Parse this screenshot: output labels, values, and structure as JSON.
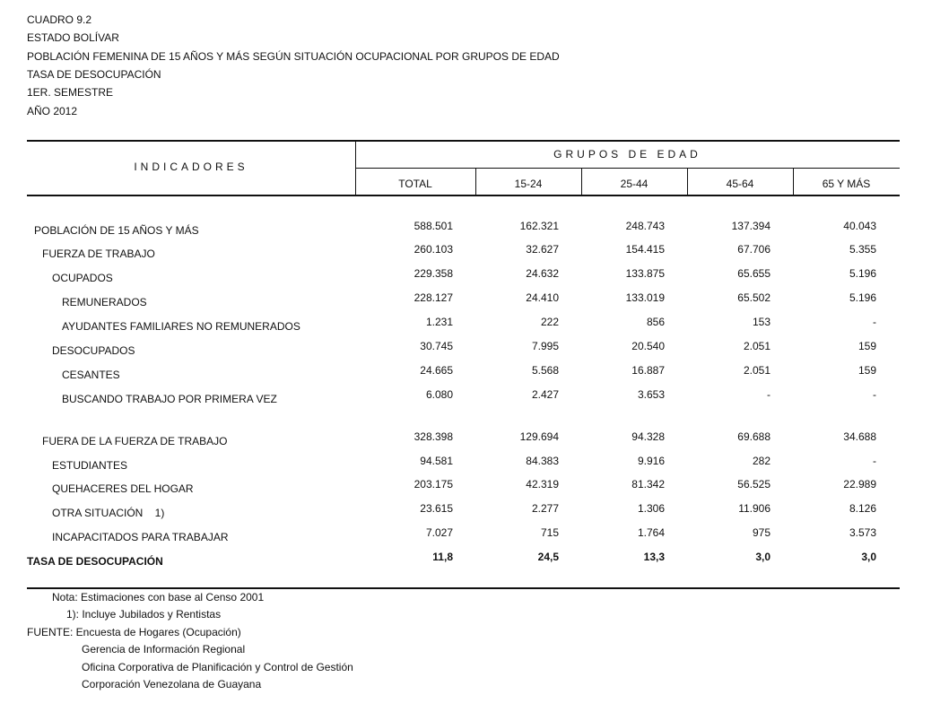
{
  "header": {
    "lines": [
      "CUADRO 9.2",
      "ESTADO BOLÍVAR",
      "POBLACIÓN FEMENINA DE 15 AÑOS Y MÁS SEGÚN SITUACIÓN OCUPACIONAL POR GRUPOS DE EDAD",
      "TASA DE DESOCUPACIÓN",
      "1ER. SEMESTRE",
      "AÑO 2012"
    ]
  },
  "table": {
    "stub_header": "INDICADORES",
    "group_header": "GRUPOS DE EDAD",
    "columns": [
      "TOTAL",
      "15-24",
      "25-44",
      "45-64",
      "65 Y MÁS"
    ],
    "rows": [
      {
        "label": "POBLACIÓN DE 15 AÑOS Y MÁS",
        "values": [
          "588.501",
          "162.321",
          "248.743",
          "137.394",
          "40.043"
        ]
      },
      {
        "label": "FUERZA DE TRABAJO",
        "values": [
          "260.103",
          "32.627",
          "154.415",
          "67.706",
          "5.355"
        ]
      },
      {
        "label": "OCUPADOS",
        "values": [
          "229.358",
          "24.632",
          "133.875",
          "65.655",
          "5.196"
        ]
      },
      {
        "label": "REMUNERADOS",
        "values": [
          "228.127",
          "24.410",
          "133.019",
          "65.502",
          "5.196"
        ]
      },
      {
        "label": "AYUDANTES FAMILIARES NO REMUNERADOS",
        "values": [
          "1.231",
          "222",
          "856",
          "153",
          "-"
        ]
      },
      {
        "label": "DESOCUPADOS",
        "values": [
          "30.745",
          "7.995",
          "20.540",
          "2.051",
          "159"
        ]
      },
      {
        "label": "CESANTES",
        "values": [
          "24.665",
          "5.568",
          "16.887",
          "2.051",
          "159"
        ]
      },
      {
        "label": "BUSCANDO TRABAJO POR PRIMERA VEZ",
        "values": [
          "6.080",
          "2.427",
          "3.653",
          "-",
          "-"
        ]
      },
      {
        "label": "FUERA DE LA FUERZA DE TRABAJO",
        "values": [
          "328.398",
          "129.694",
          "94.328",
          "69.688",
          "34.688"
        ]
      },
      {
        "label": "ESTUDIANTES",
        "values": [
          "94.581",
          "84.383",
          "9.916",
          "282",
          "-"
        ]
      },
      {
        "label": "QUEHACERES DEL HOGAR",
        "values": [
          "203.175",
          "42.319",
          "81.342",
          "56.525",
          "22.989"
        ]
      },
      {
        "label": "OTRA SITUACIÓN    1)",
        "values": [
          "23.615",
          "2.277",
          "1.306",
          "11.906",
          "8.126"
        ]
      },
      {
        "label": "INCAPACITADOS PARA TRABAJAR",
        "values": [
          "7.027",
          "715",
          "1.764",
          "975",
          "3.573"
        ]
      },
      {
        "label": "TASA DE DESOCUPACIÓN",
        "values": [
          "11,8",
          "24,5",
          "13,3",
          "3,0",
          "3,0"
        ]
      }
    ]
  },
  "notes": [
    "Nota: Estimaciones con base al Censo 2001",
    "1): Incluye Jubilados y Rentistas",
    "FUENTE: Encuesta de Hogares (Ocupación)",
    "Gerencia de Información Regional",
    "Oficina Corporativa de Planificación y Control de Gestión",
    "Corporación Venezolana de Guayana"
  ]
}
